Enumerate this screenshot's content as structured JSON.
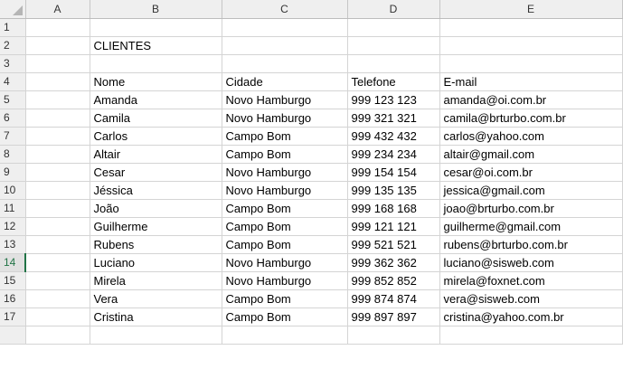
{
  "columns": [
    "A",
    "B",
    "C",
    "D",
    "E"
  ],
  "active_row": "14",
  "rows": [
    {
      "n": "1",
      "cells": [
        "",
        "",
        "",
        "",
        ""
      ]
    },
    {
      "n": "2",
      "cells": [
        "",
        "CLIENTES",
        "",
        "",
        ""
      ]
    },
    {
      "n": "3",
      "cells": [
        "",
        "",
        "",
        "",
        ""
      ]
    },
    {
      "n": "4",
      "cells": [
        "",
        "Nome",
        "Cidade",
        "Telefone",
        "E-mail"
      ]
    },
    {
      "n": "5",
      "cells": [
        "",
        "Amanda",
        "Novo Hamburgo",
        "999 123 123",
        "amanda@oi.com.br"
      ]
    },
    {
      "n": "6",
      "cells": [
        "",
        "Camila",
        "Novo Hamburgo",
        "999 321 321",
        "camila@brturbo.com.br"
      ]
    },
    {
      "n": "7",
      "cells": [
        "",
        "Carlos",
        "Campo Bom",
        "999 432 432",
        "carlos@yahoo.com"
      ]
    },
    {
      "n": "8",
      "cells": [
        "",
        "Altair",
        "Campo Bom",
        "999 234 234",
        "altair@gmail.com"
      ]
    },
    {
      "n": "9",
      "cells": [
        "",
        "Cesar",
        "Novo Hamburgo",
        "999 154 154",
        "cesar@oi.com.br"
      ]
    },
    {
      "n": "10",
      "cells": [
        "",
        "Jéssica",
        "Novo Hamburgo",
        "999 135 135",
        "jessica@gmail.com"
      ]
    },
    {
      "n": "11",
      "cells": [
        "",
        "João",
        "Campo Bom",
        "999 168 168",
        "joao@brturbo.com.br"
      ]
    },
    {
      "n": "12",
      "cells": [
        "",
        "Guilherme",
        "Campo Bom",
        "999 121 121",
        "guilherme@gmail.com"
      ]
    },
    {
      "n": "13",
      "cells": [
        "",
        "Rubens",
        "Campo Bom",
        "999 521 521",
        "rubens@brturbo.com.br"
      ]
    },
    {
      "n": "14",
      "cells": [
        "",
        "Luciano",
        "Novo Hamburgo",
        "999 362 362",
        "luciano@sisweb.com"
      ]
    },
    {
      "n": "15",
      "cells": [
        "",
        "Mirela",
        "Novo Hamburgo",
        "999 852 852",
        "mirela@foxnet.com"
      ]
    },
    {
      "n": "16",
      "cells": [
        "",
        "Vera",
        "Campo Bom",
        "999 874 874",
        "vera@sisweb.com"
      ]
    },
    {
      "n": "17",
      "cells": [
        "",
        "Cristina",
        "Campo Bom",
        "999 897 897",
        "cristina@yahoo.com.br"
      ]
    }
  ]
}
